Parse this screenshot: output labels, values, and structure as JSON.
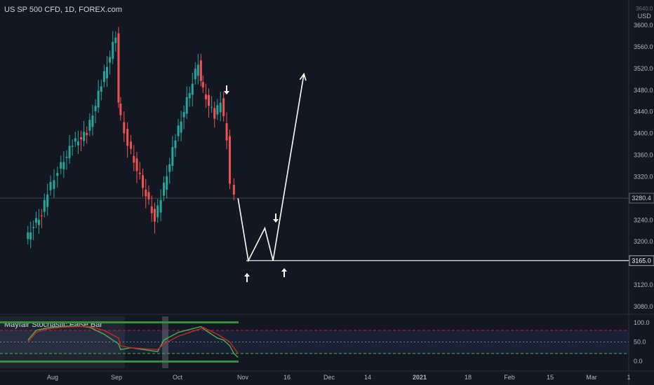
{
  "header": {
    "title": "US SP 500 CFD, 1D, FOREX.com",
    "currency": "USD",
    "top_tick": "3640.0"
  },
  "indicator": {
    "label": "Mayfair Stochastic False Bar",
    "ticks": [
      "100.0",
      "50.0",
      "0.0"
    ]
  },
  "colors": {
    "background": "#131722",
    "up": "#26a69a",
    "down": "#ef5350",
    "drawing": "#ffffff",
    "stoch_k": "#4caf50",
    "stoch_d": "#c62828",
    "band_green": "#388e3c"
  },
  "chart_data": [
    {
      "type": "candlestick",
      "title": "US SP 500 CFD, 1D, FOREX.com",
      "ylabel": "USD",
      "y_ticks": [
        3080,
        3120,
        3160,
        3200,
        3240,
        3280,
        3320,
        3360,
        3400,
        3440,
        3480,
        3520,
        3560,
        3600
      ],
      "y_tick_labels": [
        "3080.0",
        "3120.0",
        "3160.0",
        "3200.0",
        "3240.0",
        "3280.0",
        "3320.0",
        "3360.0",
        "3400.0",
        "3440.0",
        "3480.0",
        "3520.0",
        "3560.0",
        "3600.0"
      ],
      "x_ticks": [
        "Aug",
        "Sep",
        "Oct",
        "Nov",
        "16",
        "Dec",
        "14",
        "2021",
        "18",
        "Feb",
        "15",
        "Mar",
        "1"
      ],
      "ylim": [
        3060,
        3650
      ],
      "last_price": 3280.4,
      "last_price_label": "3280.4",
      "ohlc_approx": [
        {
          "date": "2020-07-20",
          "o": 3140,
          "h": 3215,
          "c": 3200,
          "l": 3120
        },
        {
          "date": "2020-07-24",
          "o": 3200,
          "h": 3240,
          "c": 3230,
          "l": 3190
        },
        {
          "date": "2020-07-28",
          "o": 3230,
          "h": 3270,
          "c": 3250,
          "l": 3215
        },
        {
          "date": "2020-07-31",
          "o": 3250,
          "h": 3300,
          "c": 3290,
          "l": 3230
        },
        {
          "date": "2020-08-05",
          "o": 3290,
          "h": 3340,
          "c": 3330,
          "l": 3280
        },
        {
          "date": "2020-08-12",
          "o": 3330,
          "h": 3390,
          "c": 3380,
          "l": 3320
        },
        {
          "date": "2020-08-19",
          "o": 3380,
          "h": 3420,
          "c": 3400,
          "l": 3370
        },
        {
          "date": "2020-08-26",
          "o": 3400,
          "h": 3500,
          "c": 3490,
          "l": 3395
        },
        {
          "date": "2020-09-02",
          "o": 3490,
          "h": 3590,
          "c": 3580,
          "l": 3480
        },
        {
          "date": "2020-09-03",
          "o": 3580,
          "h": 3585,
          "c": 3450,
          "l": 3430
        },
        {
          "date": "2020-09-08",
          "o": 3450,
          "h": 3460,
          "c": 3380,
          "l": 3360
        },
        {
          "date": "2020-09-21",
          "o": 3380,
          "h": 3390,
          "c": 3240,
          "l": 3220
        },
        {
          "date": "2020-09-24",
          "o": 3240,
          "h": 3290,
          "c": 3280,
          "l": 3215
        },
        {
          "date": "2020-10-01",
          "o": 3280,
          "h": 3410,
          "c": 3390,
          "l": 3270
        },
        {
          "date": "2020-10-12",
          "o": 3390,
          "h": 3550,
          "c": 3530,
          "l": 3380
        },
        {
          "date": "2020-10-13",
          "o": 3530,
          "h": 3540,
          "c": 3490,
          "l": 3470
        },
        {
          "date": "2020-10-20",
          "o": 3490,
          "h": 3500,
          "c": 3430,
          "l": 3410
        },
        {
          "date": "2020-10-23",
          "o": 3430,
          "h": 3470,
          "c": 3460,
          "l": 3420
        },
        {
          "date": "2020-10-26",
          "o": 3460,
          "h": 3465,
          "c": 3390,
          "l": 3370
        },
        {
          "date": "2020-10-28",
          "o": 3390,
          "h": 3395,
          "c": 3300,
          "l": 3280
        },
        {
          "date": "2020-10-30",
          "o": 3300,
          "h": 3320,
          "c": 3280,
          "l": 3240
        }
      ],
      "projection": {
        "points": [
          {
            "date": "2020-10-30",
            "y": 3280
          },
          {
            "date": "2020-11-04",
            "y": 3165
          },
          {
            "date": "2020-11-12",
            "y": 3225
          },
          {
            "date": "2020-11-16",
            "y": 3165
          },
          {
            "date": "2020-12-01",
            "y": 3510
          }
        ],
        "support_level": 3165,
        "support_label": "3165.0"
      }
    },
    {
      "type": "line",
      "title": "Mayfair Stochastic False Bar",
      "ylim": [
        -10,
        110
      ],
      "y_ticks": [
        0,
        50,
        100
      ],
      "series": [
        {
          "values": [
            55,
            80,
            85,
            88,
            90,
            92,
            88,
            70,
            45,
            30,
            35,
            25,
            55,
            75,
            90,
            85,
            60,
            55,
            40,
            20,
            10
          ]
        },
        {
          "values": [
            50,
            75,
            82,
            85,
            88,
            90,
            90,
            80,
            60,
            40,
            35,
            30,
            45,
            65,
            85,
            88,
            70,
            60,
            50,
            35,
            20
          ]
        }
      ]
    }
  ]
}
